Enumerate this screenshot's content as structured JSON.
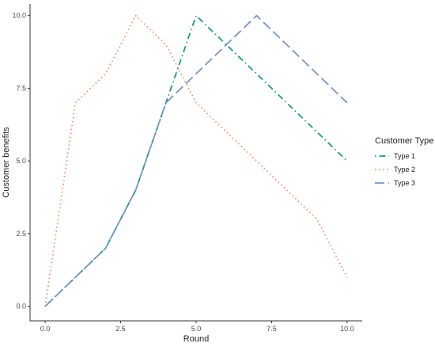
{
  "chart_data": {
    "type": "line",
    "title": "",
    "xlabel": "Round",
    "ylabel": "Customer benefits",
    "xlim": [
      -0.5,
      10.5
    ],
    "ylim": [
      -0.5,
      10.4
    ],
    "x_ticks": [
      0,
      2.5,
      5,
      7.5,
      10
    ],
    "x_tick_labels": [
      "0.0",
      "2.5",
      "5.0",
      "7.5",
      "10.0"
    ],
    "y_ticks": [
      0,
      2.5,
      5,
      7.5,
      10
    ],
    "y_tick_labels": [
      "0.0",
      "2.5",
      "5.0",
      "7.5",
      "10.0"
    ],
    "grid": false,
    "legend": {
      "title": "Customer Type",
      "placement": "right"
    },
    "series": [
      {
        "name": "Type 1",
        "color": "#1b9e77",
        "dash": "dotdash",
        "x": [
          0,
          1,
          2,
          3,
          4,
          5,
          6,
          7,
          8,
          9,
          10
        ],
        "y": [
          0,
          1,
          2,
          4,
          7,
          10,
          9,
          8,
          7,
          6,
          5
        ]
      },
      {
        "name": "Type 2",
        "color": "#fc8d62",
        "dash": "dotted",
        "x": [
          0,
          1,
          2,
          3,
          4,
          5,
          6,
          7,
          8,
          9,
          10
        ],
        "y": [
          0,
          7,
          8,
          10,
          9,
          7,
          6,
          5,
          4,
          3,
          1
        ]
      },
      {
        "name": "Type 3",
        "color": "#7895c8",
        "dash": "longdash",
        "x": [
          0,
          1,
          2,
          3,
          4,
          5,
          6,
          7,
          8,
          9,
          10
        ],
        "y": [
          0,
          1,
          2,
          4,
          7,
          8,
          9,
          10,
          9,
          8,
          7
        ]
      }
    ]
  }
}
